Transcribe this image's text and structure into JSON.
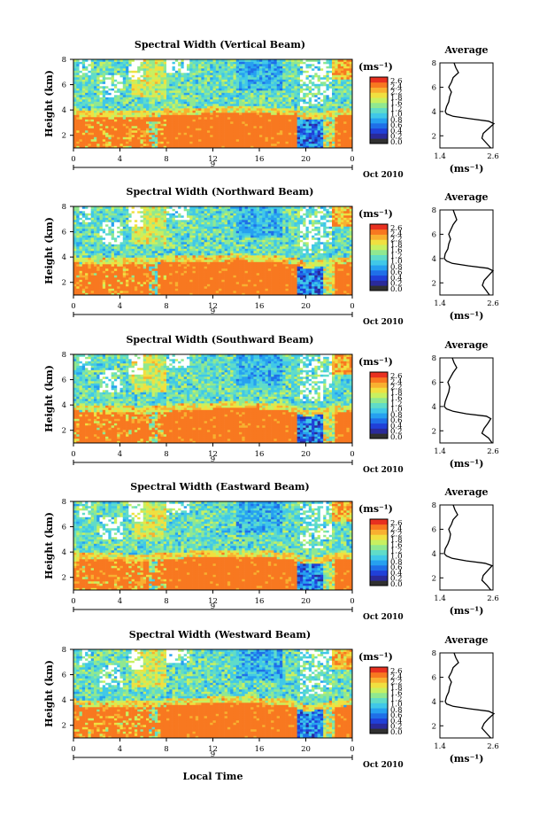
{
  "figure": {
    "xlabel": "Local Time",
    "panels": [
      {
        "title": "Spectral Width (Vertical Beam)"
      },
      {
        "title": "Spectral Width (Northward Beam)"
      },
      {
        "title": "Spectral Width (Southward Beam)"
      },
      {
        "title": "Spectral Width (Eastward Beam)"
      },
      {
        "title": "Spectral Width (Westward Beam)"
      }
    ]
  },
  "chart_data": {
    "type": "heatmap",
    "xlabel": "Local Time",
    "ylabel": "Height (km)",
    "x_ticks": [
      "0",
      "4",
      "8",
      "12",
      "16",
      "20",
      "0"
    ],
    "x_range": [
      0,
      24
    ],
    "y_ticks": [
      "2",
      "4",
      "6",
      "8"
    ],
    "y_range": [
      1,
      8
    ],
    "date_marker": "9",
    "date_label": "Oct 2010",
    "colorbar": {
      "unit": "(ms⁻¹)",
      "ticks": [
        "2.6",
        "2.4",
        "2.2",
        "1.8",
        "1.6",
        "1.2",
        "1.0",
        "0.8",
        "0.6",
        "0.4",
        "0.2",
        "0.0"
      ],
      "range": [
        0.0,
        2.8
      ],
      "colors": [
        "#303030",
        "#2a2a9a",
        "#2040d8",
        "#1f6fe8",
        "#26a0f0",
        "#40c8e8",
        "#60dcc8",
        "#90e890",
        "#c8f060",
        "#f0e040",
        "#f8b030",
        "#f87820",
        "#e83020"
      ]
    },
    "panels": [
      {
        "title": "Spectral Width (Vertical Beam)",
        "boundary_layer_top_km": [
          3.6,
          3.5,
          3.5,
          3.5,
          3.5,
          3.4,
          3.4,
          3.5,
          3.6,
          3.7,
          3.7,
          3.7,
          3.8,
          3.8,
          3.8,
          3.8,
          3.8,
          3.7,
          3.7,
          3.6,
          3.2,
          3.3,
          3.4,
          3.6,
          3.6
        ],
        "profile": {
          "title": "Average",
          "xlabel": "(ms⁻¹)",
          "x_ticks": [
            "1.4",
            "2.6"
          ],
          "x_range": [
            1.4,
            2.6
          ],
          "y_ticks": [
            "2",
            "4",
            "6",
            "8"
          ],
          "y_range": [
            1,
            8
          ],
          "height_km": [
            1.0,
            1.4,
            1.8,
            2.2,
            2.6,
            3.0,
            3.2,
            3.4,
            3.6,
            3.8,
            4.0,
            4.4,
            4.8,
            5.2,
            5.6,
            6.0,
            6.4,
            6.8,
            7.2,
            7.6,
            8.0
          ],
          "value": [
            2.55,
            2.45,
            2.35,
            2.38,
            2.5,
            2.62,
            2.5,
            2.1,
            1.7,
            1.55,
            1.52,
            1.55,
            1.6,
            1.62,
            1.66,
            1.6,
            1.66,
            1.7,
            1.82,
            1.76,
            1.72
          ]
        }
      },
      {
        "title": "Spectral Width (Northward Beam)",
        "boundary_layer_top_km": [
          3.6,
          3.5,
          3.5,
          3.5,
          3.4,
          3.4,
          3.4,
          3.5,
          3.6,
          3.6,
          3.7,
          3.7,
          3.7,
          3.7,
          3.8,
          3.7,
          3.7,
          3.6,
          3.6,
          3.5,
          3.1,
          3.2,
          3.4,
          3.5,
          3.6
        ],
        "profile": {
          "title": "Average",
          "xlabel": "(ms⁻¹)",
          "x_ticks": [
            "1.4",
            "2.6"
          ],
          "x_range": [
            1.4,
            2.6
          ],
          "y_ticks": [
            "2",
            "4",
            "6",
            "8"
          ],
          "y_range": [
            1,
            8
          ],
          "height_km": [
            1.0,
            1.4,
            1.8,
            2.2,
            2.6,
            3.0,
            3.2,
            3.4,
            3.6,
            3.8,
            4.0,
            4.4,
            4.8,
            5.2,
            5.6,
            6.0,
            6.4,
            6.8,
            7.2,
            7.6,
            8.0
          ],
          "value": [
            2.52,
            2.44,
            2.36,
            2.4,
            2.5,
            2.6,
            2.48,
            2.05,
            1.68,
            1.55,
            1.5,
            1.52,
            1.58,
            1.6,
            1.64,
            1.6,
            1.65,
            1.7,
            1.78,
            1.74,
            1.7
          ]
        }
      },
      {
        "title": "Spectral Width (Southward Beam)",
        "boundary_layer_top_km": [
          3.6,
          3.5,
          3.5,
          3.4,
          3.4,
          3.4,
          3.3,
          3.4,
          3.5,
          3.6,
          3.6,
          3.7,
          3.7,
          3.8,
          3.8,
          3.8,
          3.7,
          3.7,
          3.6,
          3.5,
          3.1,
          3.2,
          3.4,
          3.5,
          3.6
        ],
        "profile": {
          "title": "Average",
          "xlabel": "(ms⁻¹)",
          "x_ticks": [
            "1.4",
            "2.6"
          ],
          "x_range": [
            1.4,
            2.6
          ],
          "y_ticks": [
            "2",
            "4",
            "6",
            "8"
          ],
          "y_range": [
            1,
            8
          ],
          "height_km": [
            1.0,
            1.4,
            1.8,
            2.2,
            2.6,
            3.0,
            3.2,
            3.4,
            3.6,
            3.8,
            4.0,
            4.4,
            4.8,
            5.2,
            5.6,
            6.0,
            6.4,
            6.8,
            7.2,
            7.6,
            8.0
          ],
          "value": [
            2.58,
            2.5,
            2.35,
            2.4,
            2.48,
            2.55,
            2.45,
            2.0,
            1.7,
            1.55,
            1.5,
            1.52,
            1.56,
            1.6,
            1.62,
            1.58,
            1.64,
            1.7,
            1.78,
            1.72,
            1.68
          ]
        }
      },
      {
        "title": "Spectral Width (Eastward Beam)",
        "boundary_layer_top_km": [
          3.5,
          3.5,
          3.4,
          3.4,
          3.4,
          3.3,
          3.3,
          3.4,
          3.5,
          3.5,
          3.6,
          3.6,
          3.7,
          3.7,
          3.7,
          3.7,
          3.6,
          3.6,
          3.5,
          3.4,
          3.0,
          3.1,
          3.3,
          3.5,
          3.5
        ],
        "profile": {
          "title": "Average",
          "xlabel": "(ms⁻¹)",
          "x_ticks": [
            "1.4",
            "2.6"
          ],
          "x_range": [
            1.4,
            2.6
          ],
          "y_ticks": [
            "2",
            "4",
            "6",
            "8"
          ],
          "y_range": [
            1,
            8
          ],
          "height_km": [
            1.0,
            1.4,
            1.8,
            2.2,
            2.6,
            3.0,
            3.2,
            3.4,
            3.6,
            3.8,
            4.0,
            4.4,
            4.8,
            5.2,
            5.6,
            6.0,
            6.4,
            6.8,
            7.2,
            7.6,
            8.0
          ],
          "value": [
            2.55,
            2.46,
            2.35,
            2.38,
            2.48,
            2.58,
            2.42,
            2.0,
            1.68,
            1.55,
            1.5,
            1.52,
            1.58,
            1.62,
            1.64,
            1.6,
            1.66,
            1.7,
            1.8,
            1.74,
            1.7
          ]
        }
      },
      {
        "title": "Spectral Width (Westward Beam)",
        "boundary_layer_top_km": [
          3.6,
          3.5,
          3.5,
          3.5,
          3.4,
          3.4,
          3.4,
          3.5,
          3.6,
          3.6,
          3.7,
          3.7,
          3.8,
          3.8,
          3.8,
          3.8,
          3.7,
          3.7,
          3.6,
          3.5,
          3.1,
          3.2,
          3.4,
          3.5,
          3.6
        ],
        "profile": {
          "title": "Average",
          "xlabel": "(ms⁻¹)",
          "x_ticks": [
            "1.4",
            "2.6"
          ],
          "x_range": [
            1.4,
            2.6
          ],
          "y_ticks": [
            "2",
            "4",
            "6",
            "8"
          ],
          "y_range": [
            1,
            8
          ],
          "height_km": [
            1.0,
            1.4,
            1.8,
            2.2,
            2.6,
            3.0,
            3.2,
            3.4,
            3.6,
            3.8,
            4.0,
            4.4,
            4.8,
            5.2,
            5.6,
            6.0,
            6.4,
            6.8,
            7.2,
            7.6,
            8.0
          ],
          "value": [
            2.55,
            2.45,
            2.35,
            2.4,
            2.5,
            2.62,
            2.5,
            2.08,
            1.7,
            1.55,
            1.52,
            1.55,
            1.6,
            1.62,
            1.66,
            1.6,
            1.66,
            1.7,
            1.82,
            1.76,
            1.72
          ]
        }
      }
    ]
  }
}
